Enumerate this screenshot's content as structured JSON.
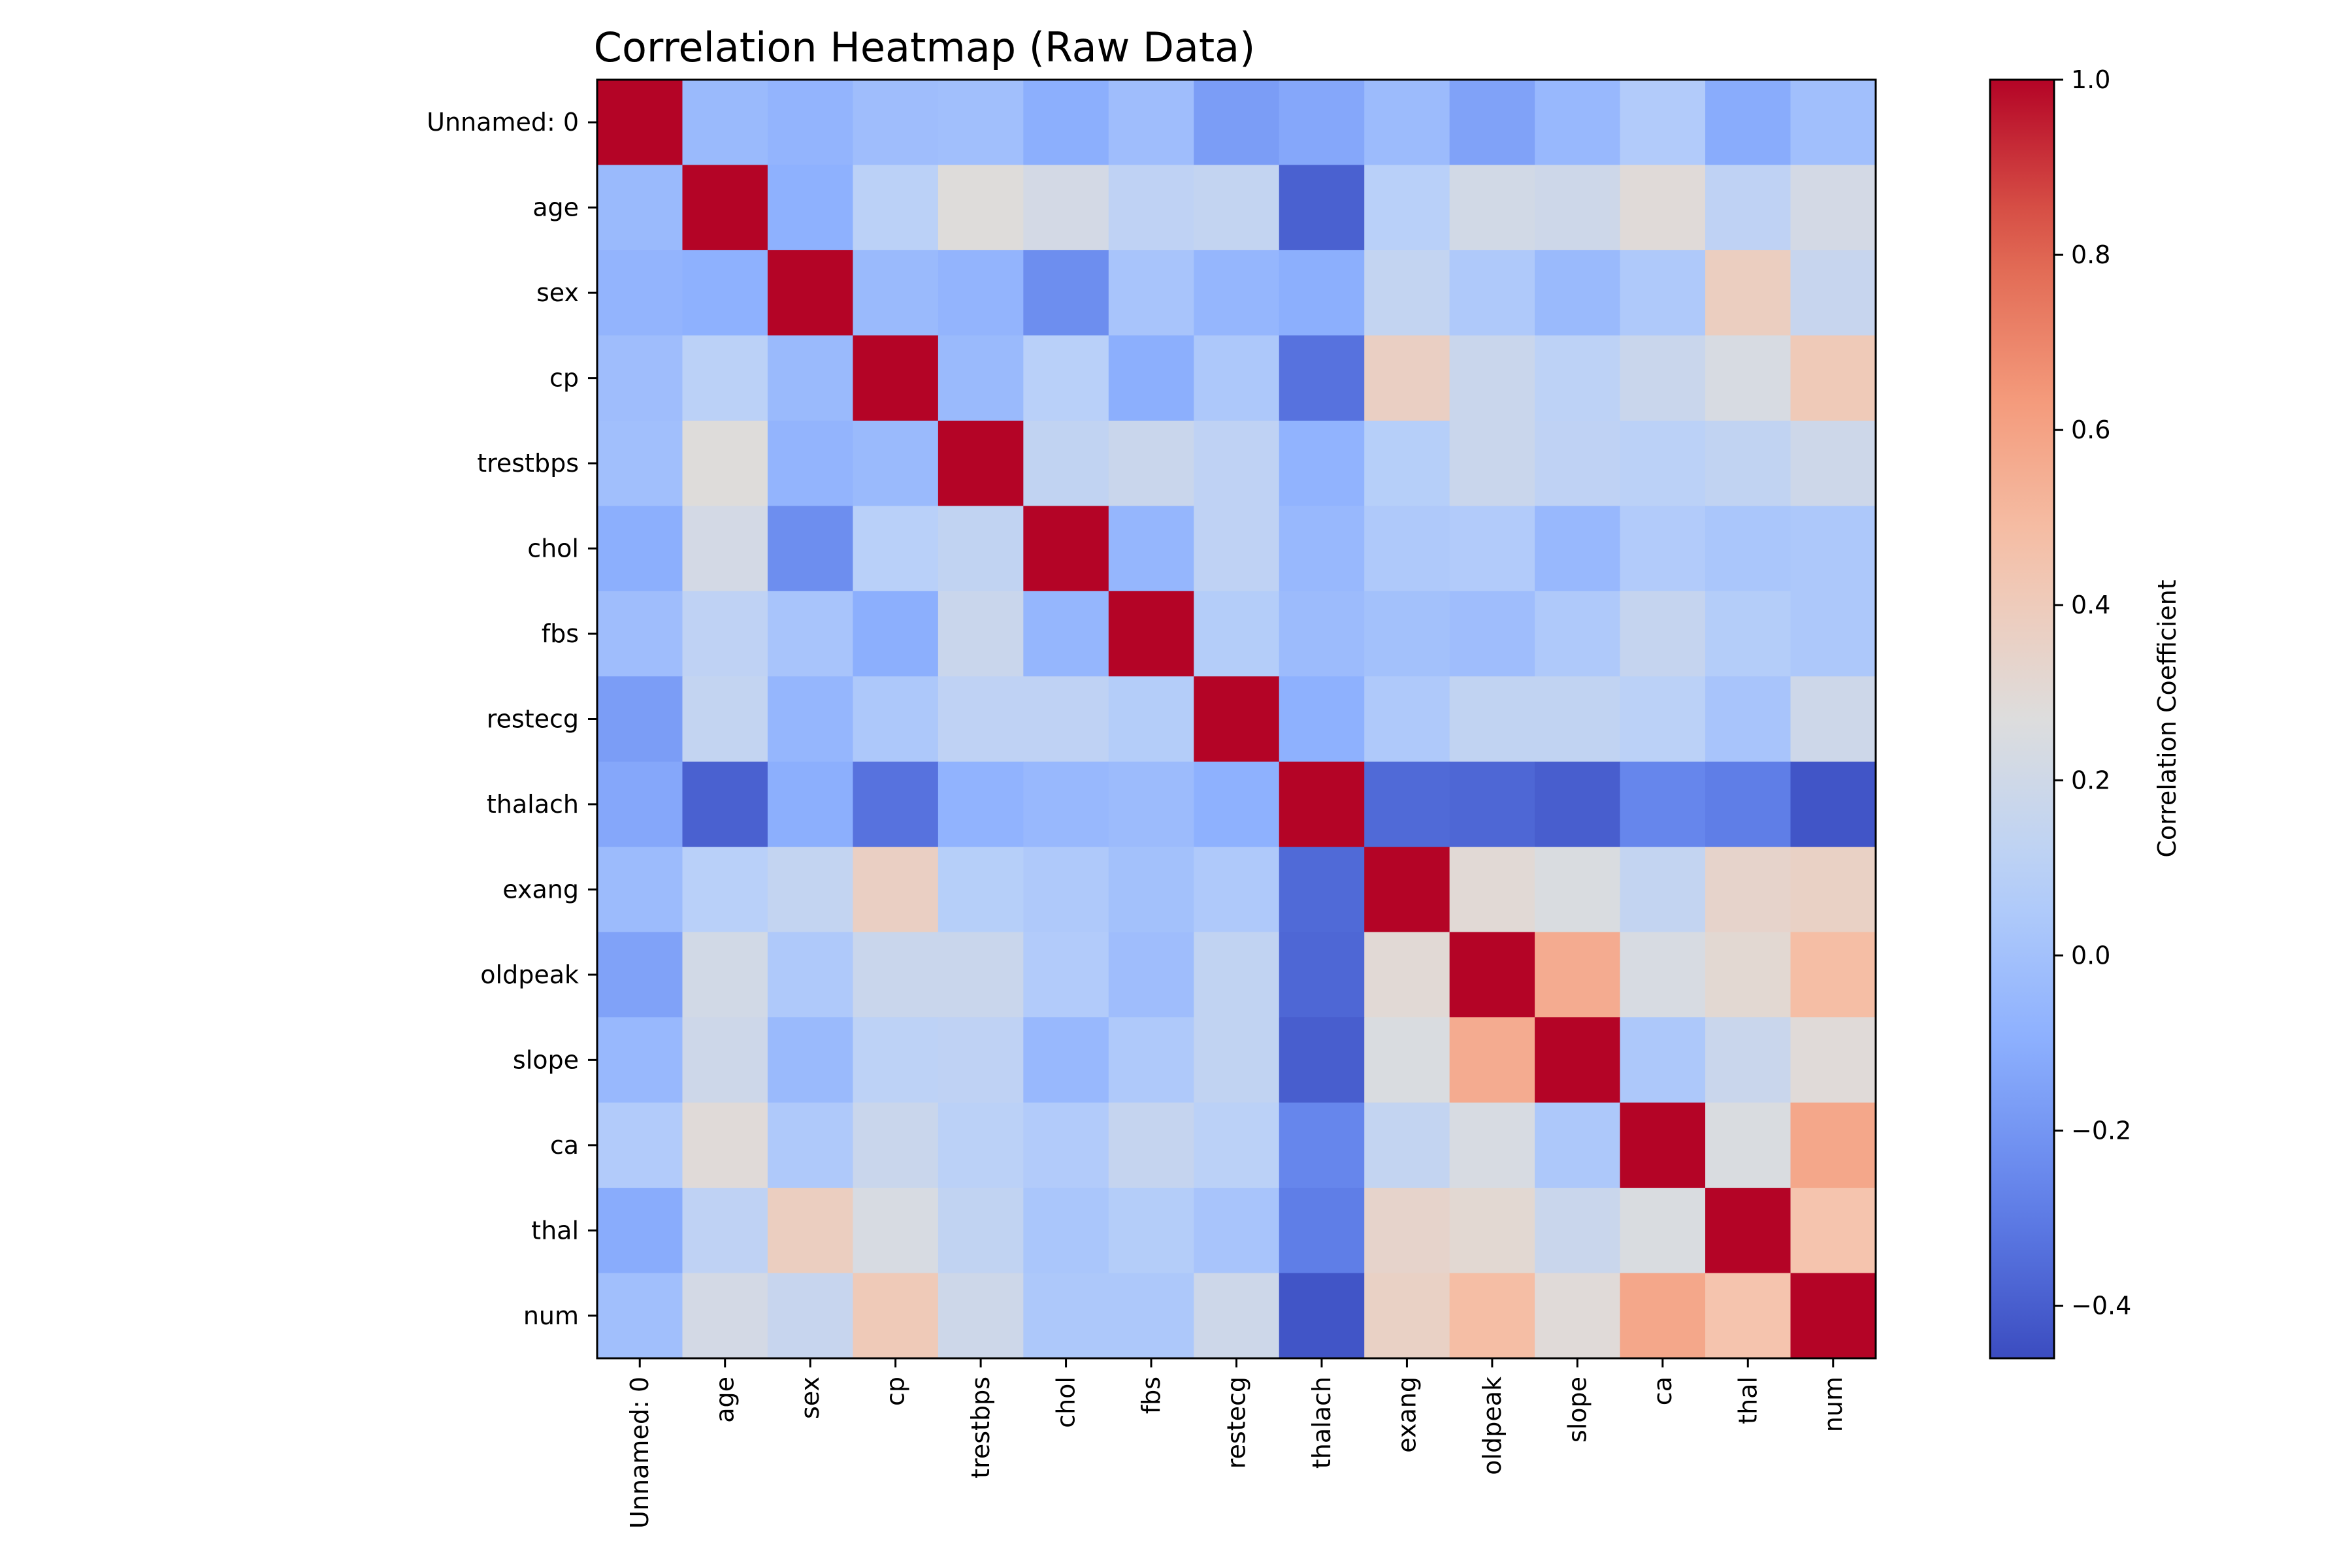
{
  "chart_data": {
    "type": "heatmap",
    "title": "Correlation Heatmap (Raw Data)",
    "xlabel": "",
    "ylabel": "",
    "variables": [
      "Unnamed: 0",
      "age",
      "sex",
      "cp",
      "trestbps",
      "chol",
      "fbs",
      "restecg",
      "thalach",
      "exang",
      "oldpeak",
      "slope",
      "ca",
      "thal",
      "num"
    ],
    "matrix": [
      [
        1.0,
        -0.04,
        -0.07,
        -0.02,
        -0.01,
        -0.1,
        -0.02,
        -0.17,
        -0.13,
        -0.03,
        -0.15,
        -0.05,
        0.06,
        -0.11,
        -0.01
      ],
      [
        -0.04,
        1.0,
        -0.09,
        0.1,
        0.28,
        0.22,
        0.12,
        0.14,
        -0.39,
        0.09,
        0.21,
        0.19,
        0.29,
        0.12,
        0.22
      ],
      [
        -0.07,
        -0.09,
        1.0,
        -0.04,
        -0.07,
        -0.23,
        0.02,
        -0.06,
        -0.1,
        0.14,
        0.05,
        -0.04,
        0.05,
        0.38,
        0.16
      ],
      [
        -0.02,
        0.1,
        -0.04,
        1.0,
        -0.04,
        0.09,
        -0.1,
        0.04,
        -0.33,
        0.37,
        0.17,
        0.11,
        0.17,
        0.24,
        0.41
      ],
      [
        -0.01,
        0.28,
        -0.07,
        -0.04,
        1.0,
        0.13,
        0.17,
        0.12,
        -0.08,
        0.08,
        0.17,
        0.12,
        0.1,
        0.13,
        0.19
      ],
      [
        -0.1,
        0.22,
        -0.23,
        0.09,
        0.13,
        1.0,
        -0.06,
        0.12,
        -0.05,
        0.05,
        0.06,
        -0.05,
        0.06,
        0.03,
        0.04
      ],
      [
        -0.02,
        0.12,
        0.02,
        -0.1,
        0.17,
        -0.06,
        1.0,
        0.07,
        -0.03,
        0.0,
        -0.02,
        0.05,
        0.15,
        0.07,
        0.04
      ],
      [
        -0.17,
        0.14,
        -0.06,
        0.04,
        0.12,
        0.12,
        0.07,
        1.0,
        -0.09,
        0.05,
        0.13,
        0.13,
        0.1,
        0.02,
        0.19
      ],
      [
        -0.13,
        -0.39,
        -0.1,
        -0.33,
        -0.08,
        -0.05,
        -0.03,
        -0.09,
        1.0,
        -0.36,
        -0.37,
        -0.4,
        -0.26,
        -0.29,
        -0.43
      ],
      [
        -0.03,
        0.09,
        0.14,
        0.37,
        0.08,
        0.05,
        0.0,
        0.05,
        -0.36,
        1.0,
        0.3,
        0.25,
        0.14,
        0.34,
        0.36
      ],
      [
        -0.15,
        0.21,
        0.05,
        0.17,
        0.17,
        0.06,
        -0.02,
        0.13,
        -0.37,
        0.3,
        1.0,
        0.56,
        0.24,
        0.31,
        0.48
      ],
      [
        -0.05,
        0.19,
        -0.04,
        0.11,
        0.12,
        -0.05,
        0.05,
        0.13,
        -0.4,
        0.25,
        0.56,
        1.0,
        0.04,
        0.17,
        0.29
      ],
      [
        0.06,
        0.29,
        0.05,
        0.17,
        0.1,
        0.06,
        0.15,
        0.1,
        -0.26,
        0.14,
        0.24,
        0.04,
        1.0,
        0.25,
        0.58
      ],
      [
        -0.11,
        0.12,
        0.38,
        0.24,
        0.13,
        0.03,
        0.07,
        0.02,
        -0.29,
        0.34,
        0.31,
        0.17,
        0.25,
        1.0,
        0.45
      ],
      [
        -0.01,
        0.22,
        0.16,
        0.41,
        0.19,
        0.04,
        0.04,
        0.19,
        -0.43,
        0.36,
        0.48,
        0.29,
        0.58,
        0.45,
        1.0
      ]
    ],
    "colormap": "coolwarm",
    "colorbar": {
      "label": "Correlation Coefficient",
      "range": [
        -0.46,
        1.0
      ],
      "ticks": [
        -0.4,
        -0.2,
        0.0,
        0.2,
        0.4,
        0.6,
        0.8,
        1.0
      ],
      "tick_labels": [
        "−0.4",
        "−0.2",
        "0.0",
        "0.2",
        "0.4",
        "0.6",
        "0.8",
        "1.0"
      ]
    },
    "grid": false
  }
}
